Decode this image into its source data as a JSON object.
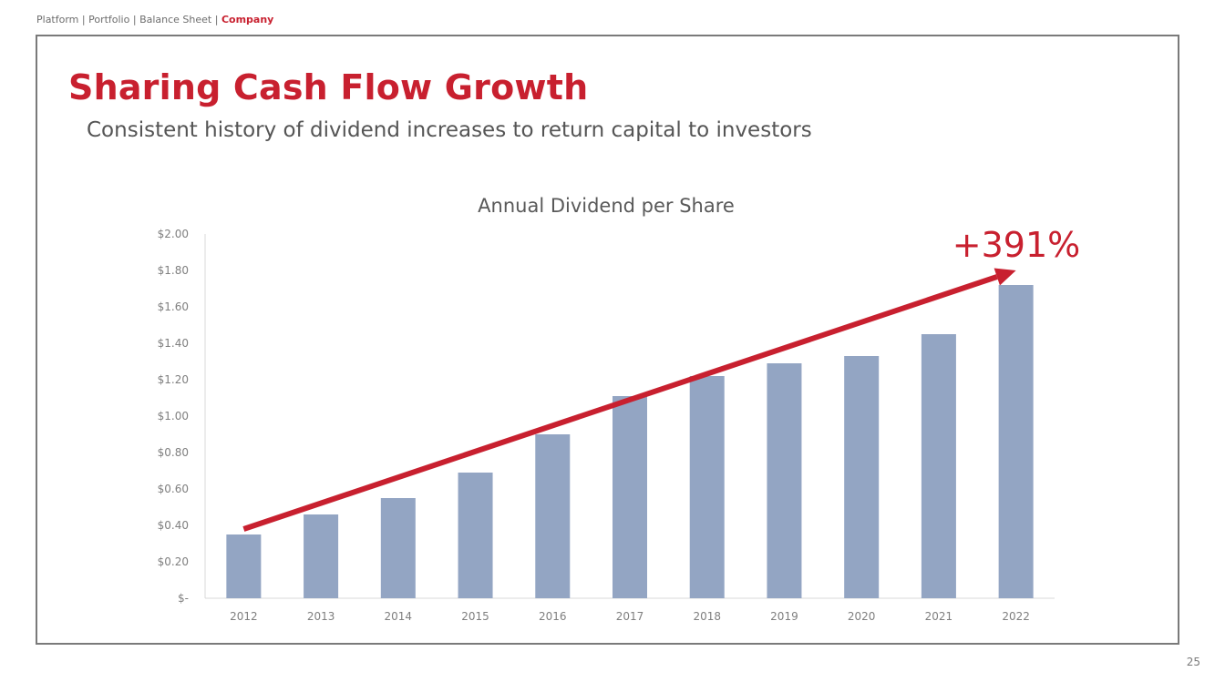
{
  "breadcrumb": {
    "items": [
      "Platform",
      "Portfolio",
      "Balance Sheet"
    ],
    "separator": " | ",
    "active": "Company"
  },
  "slide": {
    "title": "Sharing Cash Flow Growth",
    "subtitle": "Consistent history of dividend increases to return capital to investors",
    "page_number": "25"
  },
  "chart_data": {
    "type": "bar",
    "title": "Annual Dividend per Share",
    "categories": [
      "2012",
      "2013",
      "2014",
      "2015",
      "2016",
      "2017",
      "2018",
      "2019",
      "2020",
      "2021",
      "2022"
    ],
    "values": [
      0.35,
      0.46,
      0.55,
      0.69,
      0.9,
      1.11,
      1.22,
      1.29,
      1.33,
      1.45,
      1.72
    ],
    "ylim": [
      0,
      2.0
    ],
    "yticks": [
      0,
      0.2,
      0.4,
      0.6,
      0.8,
      1.0,
      1.2,
      1.4,
      1.6,
      1.8,
      2.0
    ],
    "ytick_labels": [
      "$-",
      "$0.20",
      "$0.40",
      "$0.60",
      "$0.80",
      "$1.00",
      "$1.20",
      "$1.40",
      "$1.60",
      "$1.80",
      "$2.00"
    ],
    "grid": false,
    "annotation": {
      "text": "+391%",
      "trend_from": [
        "2012",
        0.38
      ],
      "trend_to": [
        "2022",
        1.8
      ]
    },
    "colors": {
      "bar": "#93a5c3",
      "arrow": "#c8202f",
      "axis": "#d9d9d9",
      "tick_text": "#7f7f7f",
      "title_text": "#595959"
    }
  }
}
